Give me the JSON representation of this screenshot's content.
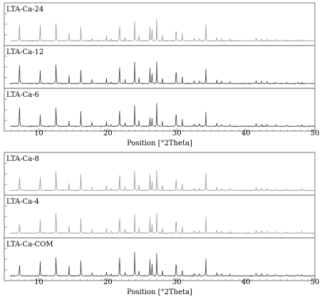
{
  "chart_data": [
    {
      "type": "line",
      "xlabel": "Position [°2Theta]",
      "xlim": [
        5,
        50
      ],
      "x_ticks": [
        10,
        20,
        30,
        40,
        50
      ],
      "y_axis_labels_shown": false,
      "grid": false,
      "legend": "none; each trace is labelled at top-left of its own panel",
      "peak_positions": [
        7.2,
        10.2,
        12.5,
        14.4,
        16.1,
        17.7,
        19.8,
        20.5,
        21.7,
        22.5,
        23.9,
        24.5,
        26.1,
        26.4,
        27.1,
        27.9,
        29.9,
        30.8,
        32.5,
        33.3,
        34.2,
        35.8,
        36.5,
        37.7,
        41.5,
        42.3,
        43.1,
        44.3,
        45.9,
        47.5,
        48.1
      ],
      "series": [
        {
          "name": "LTA-Ca-24",
          "color": "#9a9a9a",
          "intensities": [
            0.69,
            0.56,
            0.73,
            0.25,
            0.43,
            0.09,
            0.18,
            0.08,
            0.72,
            0.11,
            0.74,
            0.17,
            0.49,
            0.52,
            0.89,
            0.2,
            0.58,
            0.22,
            0.09,
            0.1,
            0.56,
            0.11,
            0.09,
            0.08,
            0.12,
            0.08,
            0.07,
            0.06,
            0.05,
            0.05,
            0.05
          ]
        },
        {
          "name": "LTA-Ca-12",
          "color": "#404040",
          "intensities": [
            0.78,
            0.48,
            0.79,
            0.28,
            0.43,
            0.14,
            0.19,
            0.08,
            0.8,
            0.13,
            0.82,
            0.19,
            0.53,
            0.46,
            0.9,
            0.2,
            0.67,
            0.21,
            0.09,
            0.12,
            0.5,
            0.12,
            0.1,
            0.08,
            0.13,
            0.09,
            0.08,
            0.07,
            0.06,
            0.05,
            0.05
          ]
        },
        {
          "name": "LTA-Ca-6",
          "color": "#404040",
          "intensities": [
            0.8,
            0.43,
            0.77,
            0.18,
            0.48,
            0.13,
            0.19,
            0.08,
            0.77,
            0.13,
            0.79,
            0.19,
            0.3,
            0.36,
            0.94,
            0.2,
            0.7,
            0.21,
            0.09,
            0.13,
            0.48,
            0.12,
            0.1,
            0.08,
            0.13,
            0.09,
            0.08,
            0.07,
            0.06,
            0.05,
            0.05
          ]
        }
      ]
    },
    {
      "type": "line",
      "xlabel": "Position [°2Theta]",
      "xlim": [
        5,
        50
      ],
      "x_ticks": [
        10,
        20,
        30,
        40,
        50
      ],
      "y_axis_labels_shown": false,
      "grid": false,
      "legend": "none; each trace is labelled at top-left of its own panel",
      "peak_positions": [
        7.2,
        10.2,
        12.5,
        14.4,
        16.1,
        17.7,
        19.8,
        20.5,
        21.7,
        22.5,
        23.9,
        24.5,
        26.1,
        26.4,
        27.1,
        27.9,
        29.9,
        30.8,
        32.5,
        33.3,
        34.2,
        35.8,
        36.5,
        37.7,
        41.5,
        42.3,
        43.1,
        44.3,
        45.9,
        47.5,
        48.1
      ],
      "series": [
        {
          "name": "LTA-Ca-8",
          "color": "#9a9a9a",
          "intensities": [
            0.53,
            0.5,
            0.79,
            0.24,
            0.51,
            0.12,
            0.16,
            0.08,
            0.74,
            0.12,
            0.74,
            0.17,
            0.52,
            0.4,
            0.8,
            0.19,
            0.58,
            0.19,
            0.09,
            0.11,
            0.61,
            0.11,
            0.1,
            0.08,
            0.12,
            0.08,
            0.07,
            0.06,
            0.05,
            0.05,
            0.05
          ]
        },
        {
          "name": "LTA-Ca-4",
          "color": "#9a9a9a",
          "intensities": [
            0.38,
            0.46,
            0.83,
            0.25,
            0.46,
            0.12,
            0.17,
            0.08,
            0.75,
            0.12,
            0.72,
            0.17,
            0.53,
            0.39,
            0.84,
            0.19,
            0.67,
            0.2,
            0.09,
            0.11,
            0.56,
            0.11,
            0.1,
            0.08,
            0.12,
            0.08,
            0.07,
            0.06,
            0.05,
            0.05,
            0.05
          ]
        },
        {
          "name": "LTA-Ca-COM",
          "color": "#404040",
          "intensities": [
            0.46,
            0.54,
            0.77,
            0.33,
            0.49,
            0.1,
            0.12,
            0.08,
            0.92,
            0.12,
            0.91,
            0.17,
            0.54,
            0.53,
            0.91,
            0.2,
            0.67,
            0.19,
            0.09,
            0.1,
            0.58,
            0.11,
            0.1,
            0.08,
            0.12,
            0.08,
            0.07,
            0.06,
            0.05,
            0.05,
            0.05
          ]
        }
      ]
    }
  ]
}
